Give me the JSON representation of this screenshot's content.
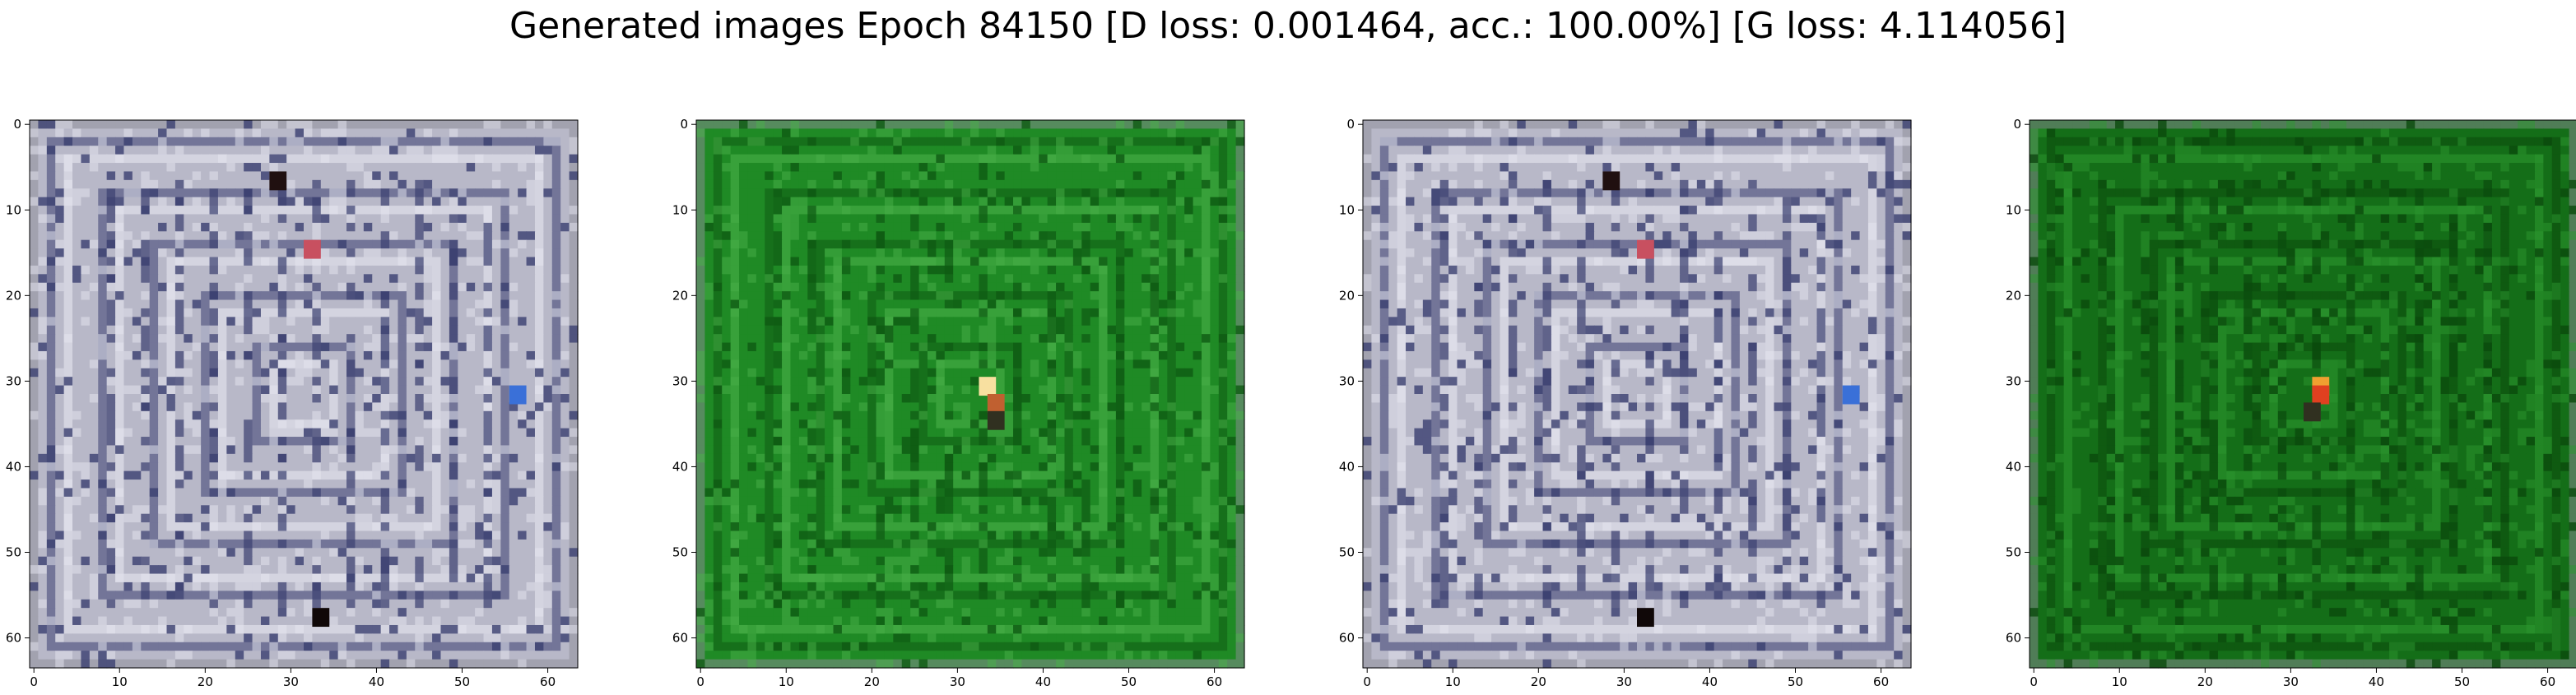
{
  "title": "Generated images Epoch 84150 [D loss: 0.001464, acc.: 100.00%] [G loss: 4.114056]",
  "chart_data": [
    {
      "type": "heatmap",
      "description_kind": "image",
      "palette": "grey-white",
      "grid_size": 64,
      "xlim": [
        0,
        63
      ],
      "ylim": [
        63,
        0
      ],
      "xticks": [
        "0",
        "10",
        "20",
        "30",
        "40",
        "50",
        "60"
      ],
      "yticks": [
        "0",
        "10",
        "20",
        "30",
        "40",
        "50",
        "60"
      ],
      "colors": {
        "base": "#b8b8c8",
        "line": "#3a3f70",
        "hi": "#e6e6f0",
        "accent": "#d05060"
      },
      "hotspots": [
        [
          32,
          14,
          "#c85060"
        ],
        [
          33,
          57,
          "#100808"
        ],
        [
          56,
          31,
          "#3a70d8"
        ],
        [
          28,
          6,
          "#201010"
        ]
      ]
    },
    {
      "type": "heatmap",
      "palette": "green",
      "grid_size": 64,
      "xlim": [
        0,
        63
      ],
      "ylim": [
        63,
        0
      ],
      "xticks": [
        "0",
        "10",
        "20",
        "30",
        "40",
        "50",
        "60"
      ],
      "yticks": [
        "0",
        "10",
        "20",
        "30",
        "40",
        "50",
        "60"
      ],
      "colors": {
        "base": "#1f8a25",
        "line": "#0e5a12",
        "hi": "#48b048",
        "accent": "#f4d090"
      },
      "hotspots": [
        [
          33,
          30,
          "#f8e0a0"
        ],
        [
          34,
          32,
          "#c06030"
        ],
        [
          34,
          34,
          "#303020"
        ]
      ]
    },
    {
      "type": "heatmap",
      "palette": "grey-white",
      "grid_size": 64,
      "xlim": [
        0,
        63
      ],
      "ylim": [
        63,
        0
      ],
      "xticks": [
        "0",
        "10",
        "20",
        "30",
        "40",
        "50",
        "60"
      ],
      "yticks": [
        "0",
        "10",
        "20",
        "30",
        "40",
        "50",
        "60"
      ],
      "colors": {
        "base": "#b8b8c8",
        "line": "#3a3f70",
        "hi": "#e6e6f0",
        "accent": "#d05060"
      },
      "hotspots": [
        [
          32,
          14,
          "#c85060"
        ],
        [
          32,
          57,
          "#100808"
        ],
        [
          56,
          31,
          "#3a70d8"
        ],
        [
          28,
          6,
          "#201010"
        ]
      ]
    },
    {
      "type": "heatmap",
      "palette": "green",
      "grid_size": 64,
      "xlim": [
        0,
        63
      ],
      "ylim": [
        63,
        0
      ],
      "xticks": [
        "0",
        "10",
        "20",
        "30",
        "40",
        "50",
        "60"
      ],
      "yticks": [
        "0",
        "10",
        "20",
        "30",
        "40",
        "50",
        "60"
      ],
      "colors": {
        "base": "#146e18",
        "line": "#0a4a0c",
        "hi": "#2c962e",
        "accent": "#f08020"
      },
      "hotspots": [
        [
          33,
          30,
          "#f0a030"
        ],
        [
          33,
          31,
          "#e04020"
        ],
        [
          32,
          33,
          "#303020"
        ]
      ]
    }
  ]
}
